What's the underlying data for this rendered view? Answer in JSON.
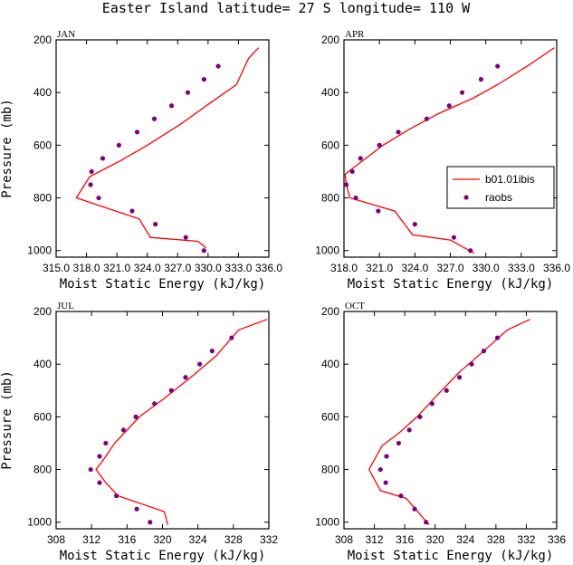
{
  "figure": {
    "title": "Easter Island  latitude= 27 S longitude= 110 W"
  },
  "colors": {
    "model_line": "#ff0000",
    "obs_marker": "#800080",
    "axes": "#000000",
    "background": "#ffffff"
  },
  "chart_data": [
    {
      "type": "line",
      "panel": "JAN",
      "xlabel": "Moist Static Energy (kJ/kg)",
      "ylabel": "Pressure (mb)",
      "xlim": [
        315.0,
        336.0
      ],
      "ylim": [
        1025,
        200
      ],
      "x_ticks": [
        "315.0",
        "318.0",
        "321.0",
        "324.0",
        "327.0",
        "330.0",
        "333.0",
        "336.0"
      ],
      "x_tick_values": [
        315,
        318,
        321,
        324,
        327,
        330,
        333,
        336
      ],
      "y_ticks": [
        "200",
        "400",
        "600",
        "800",
        "1000"
      ],
      "y_tick_values": [
        200,
        400,
        600,
        800,
        1000
      ],
      "legend": null,
      "series": [
        {
          "name": "b01.01ibis",
          "kind": "line",
          "x": [
            335.0,
            334.0,
            332.8,
            330.2,
            327.3,
            324.0,
            321.3,
            318.3,
            317.0,
            323.2,
            324.3,
            329.0,
            329.8
          ],
          "y": [
            230,
            270,
            370,
            440,
            520,
            600,
            660,
            720,
            800,
            880,
            950,
            965,
            990
          ]
        },
        {
          "name": "raobs",
          "kind": "markers",
          "x": [
            331.0,
            329.6,
            328.0,
            326.4,
            324.7,
            323.0,
            321.2,
            319.6,
            318.5,
            318.4,
            319.2,
            322.5,
            324.8,
            327.8,
            329.6
          ],
          "y": [
            300,
            350,
            400,
            450,
            500,
            550,
            600,
            650,
            700,
            750,
            800,
            850,
            900,
            950,
            1000
          ]
        }
      ]
    },
    {
      "type": "line",
      "panel": "APR",
      "xlabel": "Moist Static Energy (kJ/kg)",
      "ylabel": "",
      "xlim": [
        318.0,
        336.0
      ],
      "ylim": [
        1025,
        200
      ],
      "x_ticks": [
        "318.0",
        "321.0",
        "324.0",
        "327.0",
        "330.0",
        "333.0",
        "336.0"
      ],
      "x_tick_values": [
        318,
        321,
        324,
        327,
        330,
        333,
        336
      ],
      "y_ticks": [
        "200",
        "400",
        "600",
        "800",
        "1000"
      ],
      "y_tick_values": [
        200,
        400,
        600,
        800,
        1000
      ],
      "legend": {
        "placement": "right-middle",
        "items": [
          "b01.01ibis",
          "raobs"
        ]
      },
      "series": [
        {
          "name": "b01.01ibis",
          "kind": "line",
          "x": [
            335.8,
            334.5,
            333.5,
            331.0,
            329.0,
            326.0,
            323.5,
            321.3,
            318.1,
            318.2,
            318.5,
            322.3,
            323.8,
            327.0,
            329.0
          ],
          "y": [
            230,
            270,
            300,
            370,
            420,
            480,
            540,
            600,
            710,
            750,
            800,
            850,
            940,
            960,
            1010
          ]
        },
        {
          "name": "raobs",
          "kind": "markers",
          "x": [
            331.0,
            329.6,
            328.0,
            326.9,
            325.0,
            322.6,
            321.0,
            319.4,
            318.7,
            318.2,
            319.0,
            320.9,
            324.0,
            327.3,
            328.7
          ],
          "y": [
            300,
            350,
            400,
            450,
            500,
            550,
            600,
            650,
            700,
            750,
            800,
            850,
            900,
            950,
            1000
          ]
        }
      ]
    },
    {
      "type": "line",
      "panel": "JUL",
      "xlabel": "Moist Static Energy (kJ/kg)",
      "ylabel": "Pressure (mb)",
      "xlim": [
        308,
        332
      ],
      "ylim": [
        1025,
        200
      ],
      "x_ticks": [
        "308",
        "312",
        "316",
        "320",
        "324",
        "328",
        "332"
      ],
      "x_tick_values": [
        308,
        312,
        316,
        320,
        324,
        328,
        332
      ],
      "y_ticks": [
        "200",
        "400",
        "600",
        "800",
        "1000"
      ],
      "y_tick_values": [
        200,
        400,
        600,
        800,
        1000
      ],
      "legend": null,
      "series": [
        {
          "name": "b01.01ibis",
          "kind": "line",
          "x": [
            331.8,
            328.6,
            326.0,
            323.2,
            320.2,
            317.4,
            314.6,
            313.4,
            312.5,
            313.6,
            315.0,
            320.2,
            320.6
          ],
          "y": [
            230,
            270,
            370,
            450,
            530,
            600,
            700,
            760,
            800,
            850,
            900,
            960,
            1010
          ]
        },
        {
          "name": "raobs",
          "kind": "markers",
          "x": [
            327.8,
            325.6,
            324.2,
            322.6,
            321.0,
            319.1,
            317.0,
            315.6,
            313.6,
            312.9,
            311.9,
            312.9,
            314.8,
            317.1,
            318.6
          ],
          "y": [
            300,
            350,
            400,
            450,
            500,
            550,
            600,
            650,
            700,
            750,
            800,
            850,
            900,
            950,
            1000
          ]
        }
      ]
    },
    {
      "type": "line",
      "panel": "OCT",
      "xlabel": "Moist Static Energy (kJ/kg)",
      "ylabel": "",
      "xlim": [
        308,
        336
      ],
      "ylim": [
        1025,
        200
      ],
      "x_ticks": [
        "308",
        "312",
        "316",
        "320",
        "324",
        "328",
        "332",
        "336"
      ],
      "x_tick_values": [
        308,
        312,
        316,
        320,
        324,
        328,
        332,
        336
      ],
      "y_ticks": [
        "200",
        "400",
        "600",
        "800",
        "1000"
      ],
      "y_tick_values": [
        200,
        400,
        600,
        800,
        1000
      ],
      "legend": null,
      "series": [
        {
          "name": "b01.01ibis",
          "kind": "line",
          "x": [
            332.5,
            329.5,
            326.8,
            323.2,
            320.2,
            317.6,
            315.3,
            313.0,
            311.3,
            312.8,
            316.2,
            319.2
          ],
          "y": [
            230,
            270,
            340,
            430,
            520,
            600,
            660,
            710,
            800,
            880,
            910,
            1010
          ]
        },
        {
          "name": "raobs",
          "kind": "markers",
          "x": [
            328.2,
            326.4,
            324.8,
            323.2,
            321.5,
            319.6,
            318.0,
            316.6,
            315.2,
            313.6,
            312.8,
            313.5,
            315.5,
            317.3,
            318.8
          ],
          "y": [
            300,
            350,
            400,
            450,
            500,
            550,
            600,
            650,
            700,
            750,
            800,
            850,
            900,
            950,
            1000
          ]
        }
      ]
    }
  ]
}
